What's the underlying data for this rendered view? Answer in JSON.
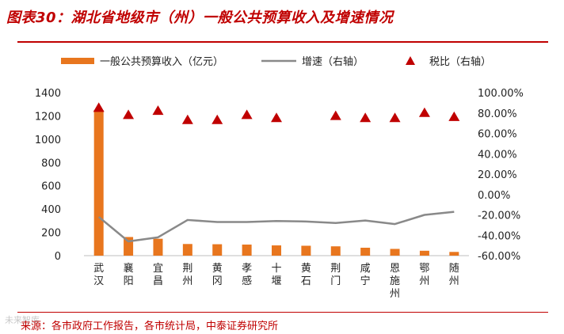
{
  "title": "图表30：湖北省地级市（州）一般公共预算收入及增速情况",
  "source": "来源：各市政府工作报告，各市统计局，中泰证券研究所",
  "watermark": "未来智库",
  "colors": {
    "bar": "#e8761e",
    "line": "#898989",
    "marker": "#c00000",
    "accent": "#c00000"
  },
  "chart_data": {
    "type": "bar",
    "categories": [
      "武汉",
      "襄阳",
      "宜昌",
      "荆州",
      "黄冈",
      "孝感",
      "十堰",
      "黄石",
      "荆门",
      "咸宁",
      "恩施州",
      "鄂州",
      "随州"
    ],
    "series": [
      {
        "name": "一般公共预算收入（亿元）",
        "type": "bar",
        "axis": "left",
        "values": [
          1250,
          160,
          145,
          100,
          98,
          95,
          88,
          85,
          80,
          68,
          58,
          42,
          32
        ]
      },
      {
        "name": "增速（右轴）",
        "type": "line",
        "axis": "right",
        "values": [
          -22,
          -46,
          -42,
          -25,
          -27,
          -27,
          -26,
          -26.5,
          -28,
          -25.5,
          -29,
          -20,
          -17
        ]
      },
      {
        "name": "税比（右轴）",
        "type": "marker",
        "axis": "right",
        "values": [
          85,
          78,
          82,
          73,
          73,
          78,
          75,
          null,
          77,
          75,
          75,
          80,
          76
        ]
      }
    ],
    "left_axis": {
      "ylim": [
        0,
        1400
      ],
      "ticks": [
        "0",
        "200",
        "400",
        "600",
        "800",
        "1000",
        "1200",
        "1400"
      ]
    },
    "right_axis": {
      "ylim": [
        -60,
        100
      ],
      "ticks": [
        "-60.00%",
        "-40.00%",
        "-20.00%",
        "0.00%",
        "20.00%",
        "40.00%",
        "60.00%",
        "80.00%",
        "100.00%"
      ]
    },
    "legend_position": "top",
    "grid": false
  }
}
